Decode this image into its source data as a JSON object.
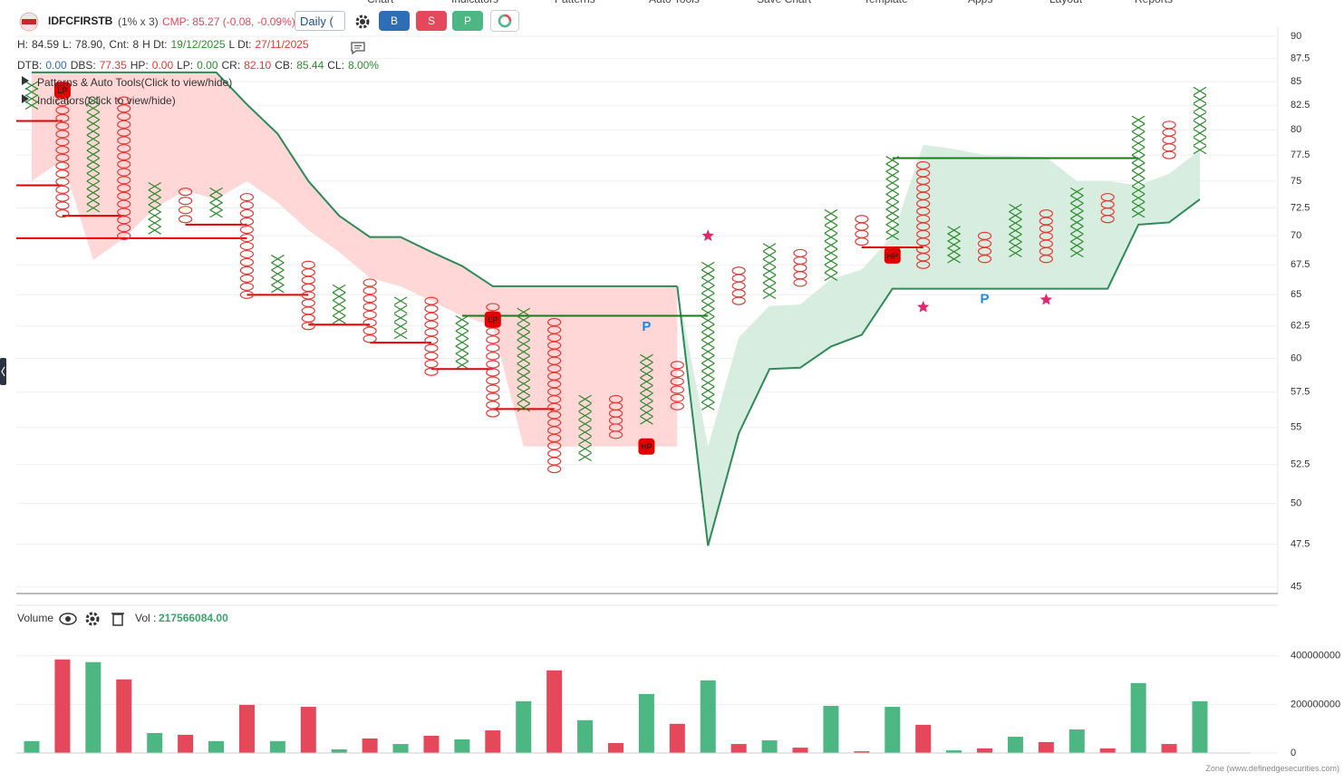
{
  "header": {
    "menu": [
      "Chart",
      "Indicators",
      "Patterns",
      "Auto Tools",
      "Save Chart",
      "Template",
      "Apps",
      "Layout",
      "Reports"
    ],
    "symbol": "IDFCFIRSTB",
    "box": "(1% x 3)",
    "cmp": "CMP: 85.27 (-0.08, -0.09%)",
    "interval": "Daily (",
    "buttons": [
      "B",
      "S",
      "P"
    ],
    "stats1": [
      {
        "label": "H:",
        "value": "84.59"
      },
      {
        "label": "L:",
        "value": "78.90,"
      },
      {
        "label": "Cnt:",
        "value": "8"
      },
      {
        "label": "H Dt:",
        "value": "19/12/2025"
      },
      {
        "label": "L Dt:",
        "value": "27/11/2025"
      }
    ],
    "stats2": [
      {
        "label": "DTB:",
        "value": "0.00"
      },
      {
        "label": "DBS:",
        "value": "77.35"
      },
      {
        "label": "HP:",
        "value": "0.00"
      },
      {
        "label": "LP:",
        "value": "0.00"
      },
      {
        "label": "CR:",
        "value": "82.10"
      },
      {
        "label": "CB:",
        "value": "85.44"
      },
      {
        "label": "CL:",
        "value": "8.00%"
      }
    ],
    "toggles": [
      "Patterns & Auto Tools(Click to view/hide)",
      "Indicators(Click to view/hide)"
    ]
  },
  "chart_data": [
    {
      "type": "pnf",
      "ylim": [
        44.63,
        91.03
      ],
      "log_scale": true,
      "grid": true,
      "yticks": [
        45,
        47.5,
        50,
        52.5,
        55,
        57.5,
        60,
        62.5,
        65,
        67.5,
        70,
        72.5,
        75,
        77.5,
        80,
        82.5,
        85,
        87.5,
        90
      ],
      "x_color": "#2e8b2e",
      "o_color": "#e53935",
      "columns": [
        {
          "type": "X",
          "low": 82.5,
          "high": 84.6
        },
        {
          "type": "O",
          "low": 72.0,
          "high": 84.5
        },
        {
          "type": "X",
          "low": 72.5,
          "high": 83.0
        },
        {
          "type": "O",
          "low": 70.0,
          "high": 83.0
        },
        {
          "type": "X",
          "low": 70.5,
          "high": 74.5
        },
        {
          "type": "O",
          "low": 71.5,
          "high": 74.0
        },
        {
          "type": "X",
          "low": 72.0,
          "high": 74.0
        },
        {
          "type": "O",
          "low": 65.0,
          "high": 73.5
        },
        {
          "type": "X",
          "low": 65.5,
          "high": 68.0
        },
        {
          "type": "O",
          "low": 62.5,
          "high": 67.5
        },
        {
          "type": "X",
          "low": 63.0,
          "high": 65.5
        },
        {
          "type": "O",
          "low": 61.5,
          "high": 66.0
        },
        {
          "type": "X",
          "low": 61.8,
          "high": 64.5
        },
        {
          "type": "O",
          "low": 59.0,
          "high": 64.5
        },
        {
          "type": "X",
          "low": 59.5,
          "high": 63.0
        },
        {
          "type": "O",
          "low": 56.0,
          "high": 64.0
        },
        {
          "type": "X",
          "low": 56.4,
          "high": 63.6
        },
        {
          "type": "O",
          "low": 52.2,
          "high": 62.8
        },
        {
          "type": "X",
          "low": 53.0,
          "high": 57.0
        },
        {
          "type": "O",
          "low": 54.5,
          "high": 57.0
        },
        {
          "type": "X",
          "low": 55.5,
          "high": 60.0
        },
        {
          "type": "O",
          "low": 56.5,
          "high": 59.5
        },
        {
          "type": "X",
          "low": 56.5,
          "high": 67.4
        },
        {
          "type": "O",
          "low": 64.5,
          "high": 67.0
        },
        {
          "type": "X",
          "low": 65.0,
          "high": 69.0
        },
        {
          "type": "O",
          "low": 66.0,
          "high": 68.5
        },
        {
          "type": "X",
          "low": 66.5,
          "high": 72.0
        },
        {
          "type": "O",
          "low": 69.5,
          "high": 71.5
        },
        {
          "type": "X",
          "low": 70.0,
          "high": 77.0
        },
        {
          "type": "O",
          "low": 67.5,
          "high": 76.5
        },
        {
          "type": "X",
          "low": 68.0,
          "high": 70.5
        },
        {
          "type": "O",
          "low": 68.0,
          "high": 70.0
        },
        {
          "type": "X",
          "low": 68.5,
          "high": 72.5
        },
        {
          "type": "O",
          "low": 68.0,
          "high": 72.0
        },
        {
          "type": "X",
          "low": 68.5,
          "high": 74.0
        },
        {
          "type": "O",
          "low": 71.5,
          "high": 73.5
        },
        {
          "type": "X",
          "low": 72.0,
          "high": 81.0
        },
        {
          "type": "O",
          "low": 77.5,
          "high": 80.5
        },
        {
          "type": "X",
          "low": 78.0,
          "high": 84.0
        }
      ],
      "cloud_line_color": "#2e8b57",
      "cloud": [
        {
          "color": "#ffd3d3",
          "start": 0,
          "line": [
            86.0,
            86.0,
            86.0,
            86.0,
            86.0,
            86.0,
            86.0,
            82.6,
            79.6,
            75.0,
            71.8,
            69.9,
            69.9,
            68.6,
            67.4,
            65.7,
            65.7,
            65.7,
            65.7,
            65.7,
            65.7,
            65.7
          ],
          "edge": [
            75.0,
            77.0,
            67.9,
            69.8,
            72.5,
            74.1,
            73.3,
            75.0,
            73.0,
            70.5,
            68.6,
            66.4,
            65.7,
            64.5,
            63.3,
            62.5,
            53.7,
            53.7,
            53.7,
            53.7,
            53.7,
            53.7
          ]
        },
        {
          "color": "#d3ebdd",
          "start": 21,
          "line": [
            65.7,
            47.4,
            54.6,
            59.2,
            59.3,
            60.9,
            61.8,
            65.5,
            65.5,
            65.5,
            65.5,
            65.5,
            65.5,
            65.5,
            65.5,
            71.0,
            71.2,
            73.3
          ],
          "edge": [
            65.7,
            53.7,
            61.6,
            64.1,
            64.2,
            66.3,
            67.1,
            70.0,
            78.5,
            78.1,
            77.5,
            77.4,
            77.3,
            75.0,
            75.0,
            74.6,
            75.7,
            78.0
          ]
        }
      ],
      "levels": [
        {
          "start": 0,
          "end": 1,
          "price": 80.9,
          "color": "#e00000"
        },
        {
          "start": 0,
          "end": 1,
          "price": 74.6,
          "color": "#e00000"
        },
        {
          "start": 0,
          "end": 7,
          "price": 69.8,
          "color": "#e00000"
        },
        {
          "start": 1,
          "end": 3,
          "price": 71.8,
          "color": "#e00000"
        },
        {
          "start": 5,
          "end": 7,
          "price": 71.0,
          "color": "#e00000"
        },
        {
          "start": 7,
          "end": 9,
          "price": 65.0,
          "color": "#e00000"
        },
        {
          "start": 9,
          "end": 11,
          "price": 62.6,
          "color": "#e00000"
        },
        {
          "start": 11,
          "end": 13,
          "price": 61.2,
          "color": "#e00000"
        },
        {
          "start": 13,
          "end": 15,
          "price": 59.2,
          "color": "#e00000"
        },
        {
          "start": 15,
          "end": 17,
          "price": 56.3,
          "color": "#e00000"
        },
        {
          "start": 27,
          "end": 29,
          "price": 69.0,
          "color": "#e00000"
        },
        {
          "start": 14,
          "end": 22,
          "price": 63.3,
          "color": "#1a7a1a"
        },
        {
          "start": 28,
          "end": 36,
          "price": 77.2,
          "color": "#1a7a1a"
        }
      ],
      "stars": [
        {
          "column": 22,
          "price": 70.0
        },
        {
          "column": 29,
          "price": 64.0
        },
        {
          "column": 33,
          "price": 64.6
        }
      ],
      "star_color": "#e0286e",
      "markers": [
        {
          "column": 20,
          "price": 62.4,
          "label": "P",
          "kind": "text"
        },
        {
          "column": 31,
          "price": 64.6,
          "label": "P",
          "kind": "text"
        },
        {
          "column": 20,
          "price": 53.7,
          "label": "HP",
          "kind": "box"
        },
        {
          "column": 28,
          "price": 68.3,
          "label": "HP",
          "kind": "box"
        },
        {
          "column": 15,
          "price": 63.0,
          "label": "LP",
          "kind": "box"
        },
        {
          "column": 1,
          "price": 84.1,
          "label": "LP",
          "kind": "box"
        }
      ]
    },
    {
      "type": "bar",
      "title": "Volume",
      "vol_label": "Vol :",
      "vol_value": "217566084.00",
      "ylim": [
        0,
        440000000
      ],
      "yticks": [
        0,
        200000000,
        400000000
      ],
      "grid": true,
      "up_color": "#4cb782",
      "down_color": "#e5475b",
      "values": [
        49000000,
        385000000,
        374000000,
        303000000,
        82000000,
        75000000,
        49000000,
        198000000,
        49000000,
        190000000,
        15000000,
        60000000,
        37000000,
        71000000,
        56000000,
        93000000,
        213000000,
        340000000,
        135000000,
        41000000,
        243000000,
        120000000,
        299000000,
        37000000,
        52000000,
        22000000,
        194000000,
        7000000,
        190000000,
        116000000,
        11000000,
        19000000,
        67000000,
        45000000,
        97000000,
        19000000,
        288000000,
        37000000,
        213000000
      ]
    }
  ],
  "footer": "Zone (www.definedgesecurities.com)"
}
